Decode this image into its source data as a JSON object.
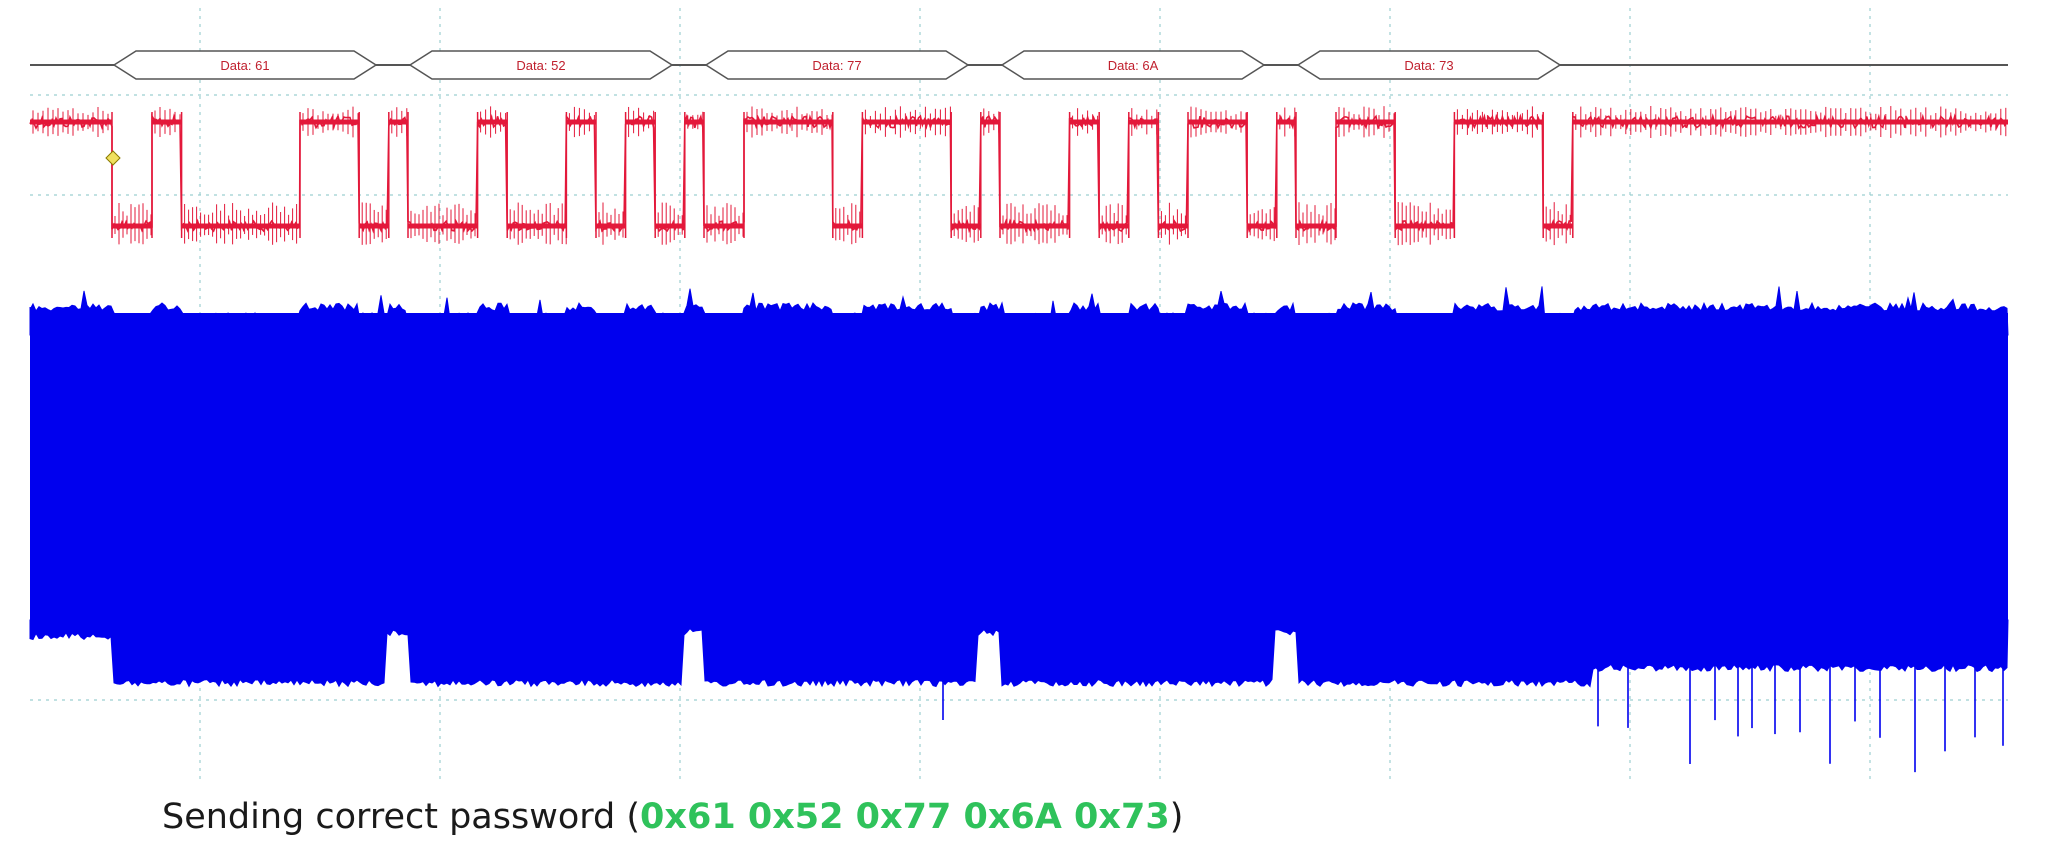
{
  "caption": {
    "prefix": "Sending correct password (",
    "bytes": "0x61 0x52 0x77 0x6A 0x73",
    "suffix": ")"
  },
  "chart_data": {
    "type": "line",
    "title": "",
    "xlabel": "",
    "ylabel": "",
    "grid": true,
    "colors": {
      "decode": "#c0202e",
      "decode_outline": "#555555",
      "signal": "#e3183a",
      "power_trace": "#0000ee",
      "grid": "#9ccfd0"
    },
    "decoded_bytes": [
      {
        "label": "Data: 61",
        "hex": "61",
        "bits": "01100001"
      },
      {
        "label": "Data: 52",
        "hex": "52",
        "bits": "01010010"
      },
      {
        "label": "Data: 77",
        "hex": "77",
        "bits": "01110111"
      },
      {
        "label": "Data: 6A",
        "hex": "6A",
        "bits": "01101010"
      },
      {
        "label": "Data: 73",
        "hex": "73",
        "bits": "01110011"
      }
    ],
    "series": [
      {
        "kind": "serial_data_line"
      },
      {
        "kind": "power_trace"
      }
    ]
  }
}
